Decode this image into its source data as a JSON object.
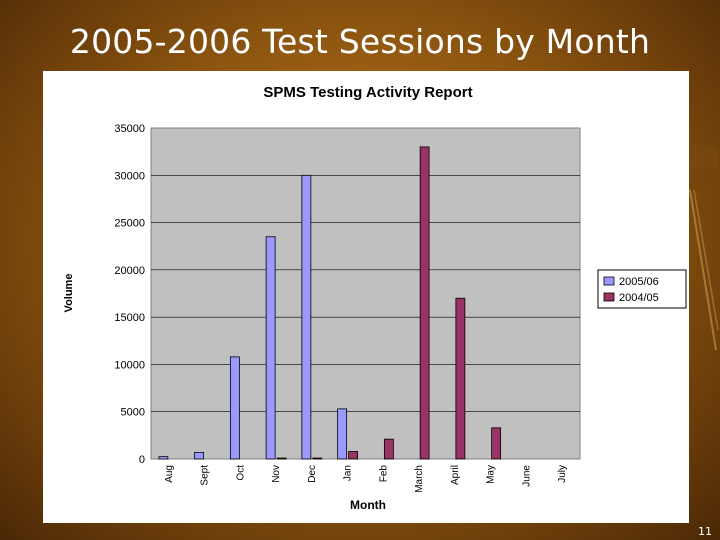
{
  "slide": {
    "title": "2005-2006 Test Sessions by Month",
    "page_number": "11"
  },
  "colors": {
    "series_2005_06": "#9999ff",
    "series_2004_05": "#993366",
    "plot_bg": "#c0c0c0"
  },
  "chart_data": {
    "type": "bar",
    "title": "SPMS Testing Activity Report",
    "xlabel": "Month",
    "ylabel": "Volume",
    "categories": [
      "Aug",
      "Sept",
      "Oct",
      "Nov",
      "Dec",
      "Jan",
      "Feb",
      "March",
      "April",
      "May",
      "June",
      "July"
    ],
    "ylim": [
      0,
      35000
    ],
    "yticks": [
      0,
      5000,
      10000,
      15000,
      20000,
      25000,
      30000,
      35000
    ],
    "grid": true,
    "legend_position": "right",
    "series": [
      {
        "name": "2005/06",
        "values": [
          250,
          700,
          10800,
          23500,
          30000,
          5300,
          0,
          0,
          0,
          0,
          0,
          0
        ]
      },
      {
        "name": "2004/05",
        "values": [
          0,
          0,
          0,
          100,
          100,
          800,
          2100,
          33000,
          17000,
          3300,
          0,
          0
        ]
      }
    ]
  }
}
